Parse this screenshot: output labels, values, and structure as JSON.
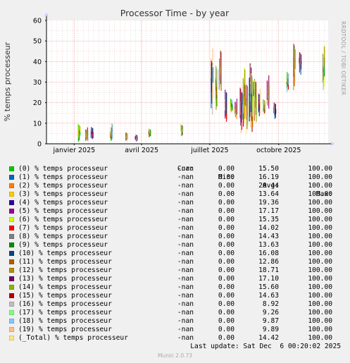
{
  "chart_data": {
    "type": "line",
    "title": "Processor Time - by year",
    "ylabel": "% temps processeur",
    "ylim": [
      0,
      60
    ],
    "yticks": [
      0,
      10,
      20,
      30,
      40,
      50,
      60
    ],
    "xlim": [
      "2024-11-25",
      "2025-12-06"
    ],
    "xticks": [
      {
        "date": "2025-01-01",
        "label": "janvier 2025"
      },
      {
        "date": "2025-04-01",
        "label": "avril 2025"
      },
      {
        "date": "2025-07-01",
        "label": "juillet 2025"
      },
      {
        "date": "2025-10-01",
        "label": "octobre 2025"
      }
    ],
    "grid": true,
    "legend_position": "bottom",
    "watermark": "RRDTOOL / TOBI OETIKER",
    "columns": {
      "cur": "Cur:",
      "min": "Min:",
      "avg": "Avg:",
      "max": "Max:"
    },
    "series": [
      {
        "name": "(0) % temps processeur",
        "color": "#00CC00",
        "cur": "-nan",
        "min": "0.00",
        "avg": "15.50",
        "max": "100.00"
      },
      {
        "name": "(1) % temps processeur",
        "color": "#0066B3",
        "cur": "-nan",
        "min": "0.00",
        "avg": "16.19",
        "max": "100.00"
      },
      {
        "name": "(2) % temps processeur",
        "color": "#FF8000",
        "cur": "-nan",
        "min": "0.00",
        "avg": "20.44",
        "max": "100.00"
      },
      {
        "name": "(3) % temps processeur",
        "color": "#FFCC00",
        "cur": "-nan",
        "min": "0.00",
        "avg": "13.64",
        "max": "100.00"
      },
      {
        "name": "(4) % temps processeur",
        "color": "#330099",
        "cur": "-nan",
        "min": "0.00",
        "avg": "19.36",
        "max": "100.00"
      },
      {
        "name": "(5) % temps processeur",
        "color": "#990099",
        "cur": "-nan",
        "min": "0.00",
        "avg": "17.17",
        "max": "100.00"
      },
      {
        "name": "(6) % temps processeur",
        "color": "#CCFF00",
        "cur": "-nan",
        "min": "0.00",
        "avg": "15.35",
        "max": "100.00"
      },
      {
        "name": "(7) % temps processeur",
        "color": "#FF0000",
        "cur": "-nan",
        "min": "0.00",
        "avg": "14.02",
        "max": "100.00"
      },
      {
        "name": "(8) % temps processeur",
        "color": "#808080",
        "cur": "-nan",
        "min": "0.00",
        "avg": "14.43",
        "max": "100.00"
      },
      {
        "name": "(9) % temps processeur",
        "color": "#008F00",
        "cur": "-nan",
        "min": "0.00",
        "avg": "13.63",
        "max": "100.00"
      },
      {
        "name": "(10) % temps processeur",
        "color": "#00487D",
        "cur": "-nan",
        "min": "0.00",
        "avg": "16.08",
        "max": "100.00"
      },
      {
        "name": "(11) % temps processeur",
        "color": "#B35A00",
        "cur": "-nan",
        "min": "0.00",
        "avg": "12.86",
        "max": "100.00"
      },
      {
        "name": "(12) % temps processeur",
        "color": "#B38F00",
        "cur": "-nan",
        "min": "0.00",
        "avg": "18.71",
        "max": "100.00"
      },
      {
        "name": "(13) % temps processeur",
        "color": "#6B006B",
        "cur": "-nan",
        "min": "0.00",
        "avg": "17.10",
        "max": "100.00"
      },
      {
        "name": "(14) % temps processeur",
        "color": "#8FB300",
        "cur": "-nan",
        "min": "0.00",
        "avg": "15.60",
        "max": "100.00"
      },
      {
        "name": "(15) % temps processeur",
        "color": "#B30000",
        "cur": "-nan",
        "min": "0.00",
        "avg": "14.63",
        "max": "100.00"
      },
      {
        "name": "(16) % temps processeur",
        "color": "#BEBEBE",
        "cur": "-nan",
        "min": "0.00",
        "avg": "8.92",
        "max": "100.00"
      },
      {
        "name": "(17) % temps processeur",
        "color": "#80FF80",
        "cur": "-nan",
        "min": "0.00",
        "avg": "9.26",
        "max": "100.00"
      },
      {
        "name": "(18) % temps processeur",
        "color": "#80C9FF",
        "cur": "-nan",
        "min": "0.00",
        "avg": "9.87",
        "max": "100.00"
      },
      {
        "name": "(19) % temps processeur",
        "color": "#FFC080",
        "cur": "-nan",
        "min": "0.00",
        "avg": "9.89",
        "max": "100.00"
      },
      {
        "name": "(_Total) % temps processeur",
        "color": "#FFE680",
        "cur": "-nan",
        "min": "0.00",
        "avg": "14.42",
        "max": "100.00"
      }
    ],
    "bursts": [
      {
        "date": "2025-01-08",
        "low": 1,
        "high": 9.5
      },
      {
        "date": "2025-01-18",
        "low": 1,
        "high": 8
      },
      {
        "date": "2025-01-25",
        "low": 2,
        "high": 8.5
      },
      {
        "date": "2025-02-20",
        "low": 1,
        "high": 10
      },
      {
        "date": "2025-03-12",
        "low": 1,
        "high": 6
      },
      {
        "date": "2025-03-25",
        "low": 1,
        "high": 4.5
      },
      {
        "date": "2025-04-12",
        "low": 3,
        "high": 8
      },
      {
        "date": "2025-05-25",
        "low": 3,
        "high": 9.5
      },
      {
        "date": "2025-07-04",
        "low": 12,
        "high": 47
      },
      {
        "date": "2025-07-10",
        "low": 15,
        "high": 40
      },
      {
        "date": "2025-07-15",
        "low": 25,
        "high": 46
      },
      {
        "date": "2025-07-23",
        "low": 10,
        "high": 28
      },
      {
        "date": "2025-07-30",
        "low": 15,
        "high": 22
      },
      {
        "date": "2025-08-05",
        "low": 12,
        "high": 22
      },
      {
        "date": "2025-08-12",
        "low": 5,
        "high": 28
      },
      {
        "date": "2025-08-16",
        "low": 8,
        "high": 37
      },
      {
        "date": "2025-08-20",
        "low": 3,
        "high": 32
      },
      {
        "date": "2025-08-24",
        "low": 6,
        "high": 40
      },
      {
        "date": "2025-08-27",
        "low": 4,
        "high": 38
      },
      {
        "date": "2025-08-31",
        "low": 10,
        "high": 32
      },
      {
        "date": "2025-09-05",
        "low": 13,
        "high": 27
      },
      {
        "date": "2025-09-12",
        "low": 14,
        "high": 22
      },
      {
        "date": "2025-09-17",
        "low": 17,
        "high": 34
      },
      {
        "date": "2025-09-26",
        "low": 12,
        "high": 21
      },
      {
        "date": "2025-10-13",
        "low": 25,
        "high": 35
      },
      {
        "date": "2025-10-22",
        "low": 24,
        "high": 53
      },
      {
        "date": "2025-10-30",
        "low": 33,
        "high": 45
      },
      {
        "date": "2025-11-30",
        "low": 25,
        "high": 48
      }
    ]
  },
  "last_update": "Last update: Sat Dec  6 00:20:02 2025",
  "footer": "Munin 2.0.73"
}
